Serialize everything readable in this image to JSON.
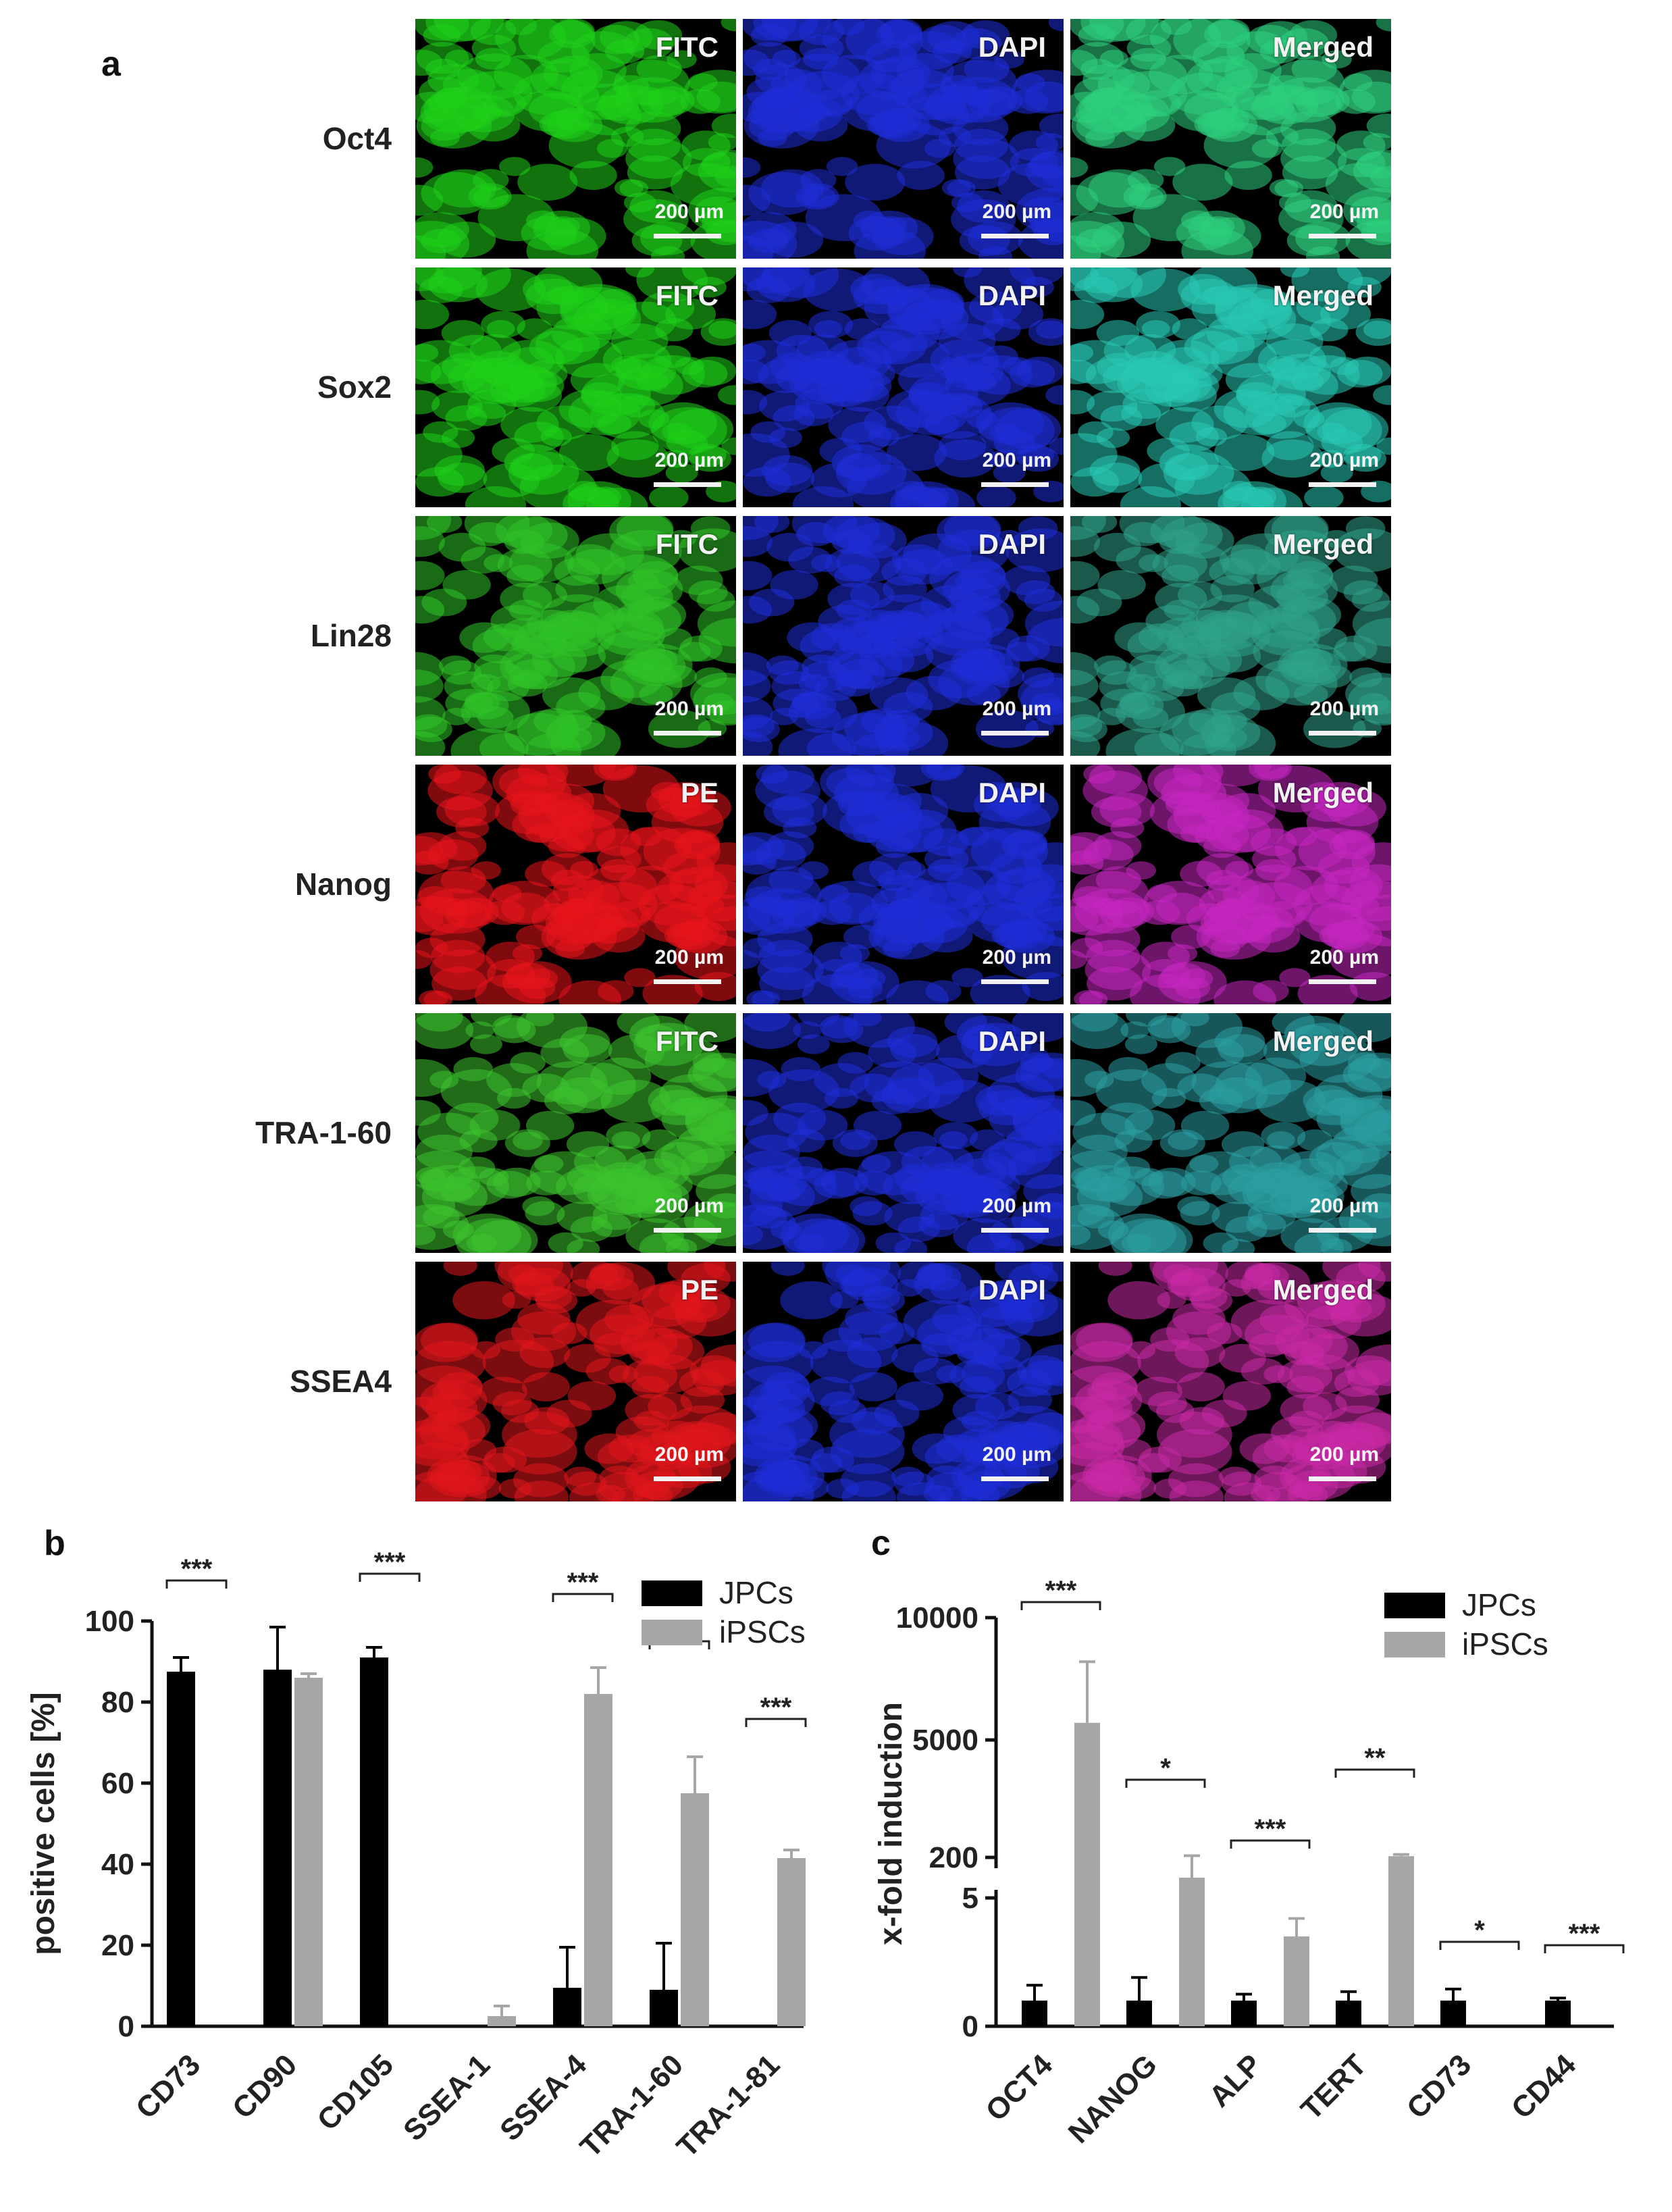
{
  "panels": {
    "a": "a",
    "b": "b",
    "c": "c"
  },
  "grid": {
    "columns": [
      "FITC",
      "DAPI",
      "Merged"
    ],
    "scale_label": "200 µm",
    "rows": [
      {
        "label": "Oct4",
        "stain": "FITC",
        "stain_color": "#1fd01a",
        "merged_color": "#2ecf7e"
      },
      {
        "label": "Sox2",
        "stain": "FITC",
        "stain_color": "#1fd01a",
        "merged_color": "#28c8b4"
      },
      {
        "label": "Lin28",
        "stain": "FITC",
        "stain_color": "#2fc228",
        "merged_color": "#2fa38a"
      },
      {
        "label": "Nanog",
        "stain": "PE",
        "stain_color": "#e8141c",
        "merged_color": "#c426c0"
      },
      {
        "label": "TRA-1-60",
        "stain": "FITC",
        "stain_color": "#3cc32e",
        "merged_color": "#2c9fa2"
      },
      {
        "label": "SSEA4",
        "stain": "PE",
        "stain_color": "#e0151c",
        "merged_color": "#c82aa6"
      }
    ],
    "dapi_color": "#1f2ed8"
  },
  "chart_data": [
    {
      "panel": "b",
      "type": "bar",
      "ylabel": "positive cells [%]",
      "ylim": [
        0,
        100
      ],
      "yticks": [
        "0",
        "20",
        "40",
        "60",
        "80",
        "100"
      ],
      "categories": [
        "CD73",
        "CD90",
        "CD105",
        "SSEA-1",
        "SSEA-4",
        "TRA-1-60",
        "TRA-1-81"
      ],
      "legend_position": "top-right",
      "series": [
        {
          "name": "JPCs",
          "color": "#000000",
          "values": [
            87.5,
            88,
            91,
            0,
            9.5,
            9,
            0
          ],
          "errors": [
            3.5,
            10.5,
            2.5,
            0,
            10,
            11.5,
            0
          ]
        },
        {
          "name": "iPSCs",
          "color": "#a6a6a6",
          "values": [
            0,
            86,
            0,
            2.5,
            82,
            57.5,
            41.5
          ],
          "errors": [
            0,
            1,
            0,
            2.5,
            6.5,
            9,
            2
          ]
        }
      ],
      "significance": [
        {
          "category": "CD73",
          "label": "***"
        },
        {
          "category": "CD105",
          "label": "***"
        },
        {
          "category": "SSEA-4",
          "label": "***"
        },
        {
          "category": "TRA-1-60",
          "label": "**"
        },
        {
          "category": "TRA-1-81",
          "label": "***"
        }
      ]
    },
    {
      "panel": "c",
      "type": "bar",
      "ylabel": "x-fold induction",
      "axis_break": true,
      "yticks": [
        "0",
        "5",
        "200",
        "5000",
        "10000"
      ],
      "categories": [
        "OCT4",
        "NANOG",
        "ALP",
        "TERT",
        "CD73",
        "CD44"
      ],
      "legend_position": "top-right",
      "series": [
        {
          "name": "JPCs",
          "color": "#000000",
          "values": [
            1,
            1,
            1,
            1,
            1,
            1
          ],
          "errors": [
            0.6,
            0.9,
            0.25,
            0.35,
            0.45,
            0.1
          ]
        },
        {
          "name": "iPSCs",
          "color": "#a6a6a6",
          "values": [
            5700,
            200,
            3.5,
            250,
            0,
            0
          ],
          "errors": [
            2500,
            70,
            0.7,
            70,
            0,
            0
          ]
        }
      ],
      "significance": [
        {
          "category": "OCT4",
          "label": "***"
        },
        {
          "category": "NANOG",
          "label": "*"
        },
        {
          "category": "ALP",
          "label": "***"
        },
        {
          "category": "TERT",
          "label": "**"
        },
        {
          "category": "CD73",
          "label": "*"
        },
        {
          "category": "CD44",
          "label": "***"
        }
      ]
    }
  ]
}
